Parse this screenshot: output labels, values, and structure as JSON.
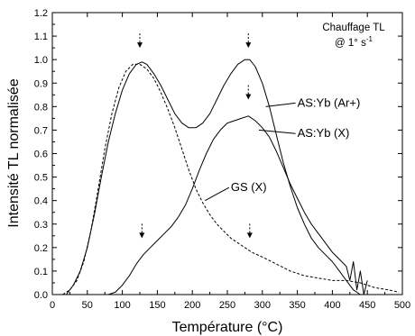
{
  "chart_data": {
    "type": "line",
    "xlabel": "Température (°C)",
    "ylabel": "Intensité TL normalisée",
    "xlim": [
      0,
      500
    ],
    "ylim": [
      0,
      1.2
    ],
    "xticks": [
      0,
      50,
      100,
      150,
      200,
      250,
      300,
      350,
      400,
      450,
      500
    ],
    "yticks": [
      0.0,
      0.1,
      0.2,
      0.3,
      0.4,
      0.5,
      0.6,
      0.7,
      0.8,
      0.9,
      1.0,
      1.1,
      1.2
    ],
    "grid": false,
    "annotation": {
      "line1": "Chauffage TL",
      "line2_prefix": "@ 1° s",
      "line2_sup": "-1"
    },
    "series": [
      {
        "name": "AS:Yb (Ar+)",
        "style": "solid",
        "points": [
          [
            20,
            0
          ],
          [
            30,
            0.04
          ],
          [
            40,
            0.1
          ],
          [
            50,
            0.2
          ],
          [
            60,
            0.34
          ],
          [
            70,
            0.5
          ],
          [
            80,
            0.65
          ],
          [
            90,
            0.77
          ],
          [
            100,
            0.87
          ],
          [
            110,
            0.94
          ],
          [
            120,
            0.98
          ],
          [
            128,
            0.99
          ],
          [
            135,
            0.98
          ],
          [
            145,
            0.94
          ],
          [
            155,
            0.89
          ],
          [
            165,
            0.83
          ],
          [
            175,
            0.77
          ],
          [
            185,
            0.73
          ],
          [
            195,
            0.71
          ],
          [
            205,
            0.71
          ],
          [
            215,
            0.73
          ],
          [
            225,
            0.77
          ],
          [
            235,
            0.83
          ],
          [
            245,
            0.89
          ],
          [
            255,
            0.94
          ],
          [
            265,
            0.98
          ],
          [
            275,
            1.0
          ],
          [
            282,
            1.0
          ],
          [
            290,
            0.97
          ],
          [
            300,
            0.9
          ],
          [
            310,
            0.8
          ],
          [
            320,
            0.68
          ],
          [
            330,
            0.56
          ],
          [
            340,
            0.46
          ],
          [
            350,
            0.37
          ],
          [
            360,
            0.3
          ],
          [
            370,
            0.24
          ],
          [
            380,
            0.2
          ],
          [
            390,
            0.17
          ],
          [
            400,
            0.14
          ],
          [
            410,
            0.1
          ],
          [
            420,
            0.06
          ],
          [
            430,
            0.02
          ],
          [
            440,
            0.0
          ]
        ]
      },
      {
        "name": "AS:Yb (X)",
        "style": "solid",
        "points": [
          [
            80,
            0
          ],
          [
            90,
            0.01
          ],
          [
            100,
            0.04
          ],
          [
            110,
            0.08
          ],
          [
            120,
            0.13
          ],
          [
            130,
            0.17
          ],
          [
            140,
            0.2
          ],
          [
            150,
            0.23
          ],
          [
            160,
            0.26
          ],
          [
            170,
            0.29
          ],
          [
            180,
            0.33
          ],
          [
            190,
            0.38
          ],
          [
            200,
            0.45
          ],
          [
            210,
            0.53
          ],
          [
            220,
            0.6
          ],
          [
            230,
            0.66
          ],
          [
            240,
            0.7
          ],
          [
            250,
            0.73
          ],
          [
            260,
            0.74
          ],
          [
            270,
            0.75
          ],
          [
            280,
            0.76
          ],
          [
            290,
            0.74
          ],
          [
            300,
            0.71
          ],
          [
            310,
            0.67
          ],
          [
            320,
            0.61
          ],
          [
            330,
            0.54
          ],
          [
            340,
            0.47
          ],
          [
            350,
            0.41
          ],
          [
            360,
            0.35
          ],
          [
            370,
            0.3
          ],
          [
            380,
            0.26
          ],
          [
            390,
            0.22
          ],
          [
            400,
            0.18
          ],
          [
            410,
            0.15
          ],
          [
            420,
            0.12
          ],
          [
            425,
            0.06
          ],
          [
            430,
            0.14
          ],
          [
            435,
            0.02
          ],
          [
            440,
            0.1
          ],
          [
            445,
            0.0
          ],
          [
            450,
            0.06
          ]
        ]
      },
      {
        "name": "GS (X)",
        "style": "dashed",
        "points": [
          [
            15,
            0
          ],
          [
            25,
            0.02
          ],
          [
            35,
            0.06
          ],
          [
            45,
            0.14
          ],
          [
            55,
            0.27
          ],
          [
            65,
            0.44
          ],
          [
            75,
            0.62
          ],
          [
            85,
            0.77
          ],
          [
            95,
            0.88
          ],
          [
            105,
            0.95
          ],
          [
            115,
            0.98
          ],
          [
            125,
            0.98
          ],
          [
            135,
            0.96
          ],
          [
            145,
            0.92
          ],
          [
            155,
            0.86
          ],
          [
            165,
            0.79
          ],
          [
            175,
            0.71
          ],
          [
            185,
            0.62
          ],
          [
            195,
            0.53
          ],
          [
            205,
            0.45
          ],
          [
            215,
            0.39
          ],
          [
            225,
            0.34
          ],
          [
            235,
            0.3
          ],
          [
            245,
            0.27
          ],
          [
            255,
            0.24
          ],
          [
            265,
            0.22
          ],
          [
            275,
            0.2
          ],
          [
            285,
            0.18
          ],
          [
            300,
            0.16
          ],
          [
            320,
            0.13
          ],
          [
            340,
            0.1
          ],
          [
            360,
            0.08
          ],
          [
            380,
            0.07
          ],
          [
            400,
            0.06
          ],
          [
            420,
            0.06
          ],
          [
            440,
            0.05
          ],
          [
            460,
            0.03
          ],
          [
            480,
            0.02
          ],
          [
            495,
            0.01
          ]
        ]
      }
    ],
    "peak_markers": [
      {
        "x": 125,
        "y": 1.05
      },
      {
        "x": 280,
        "y": 1.05
      },
      {
        "x": 280,
        "y": 0.83
      },
      {
        "x": 128,
        "y": 0.24
      },
      {
        "x": 282,
        "y": 0.24
      }
    ],
    "labels": [
      {
        "text": "AS:Yb (Ar+)",
        "at": [
          350,
          0.8
        ],
        "target": [
          305,
          0.8
        ]
      },
      {
        "text": "AS:Yb (X)",
        "at": [
          350,
          0.67
        ],
        "target": [
          295,
          0.7
        ]
      },
      {
        "text": "GS (X)",
        "at": [
          255,
          0.44
        ],
        "target": [
          218,
          0.4
        ]
      }
    ]
  }
}
